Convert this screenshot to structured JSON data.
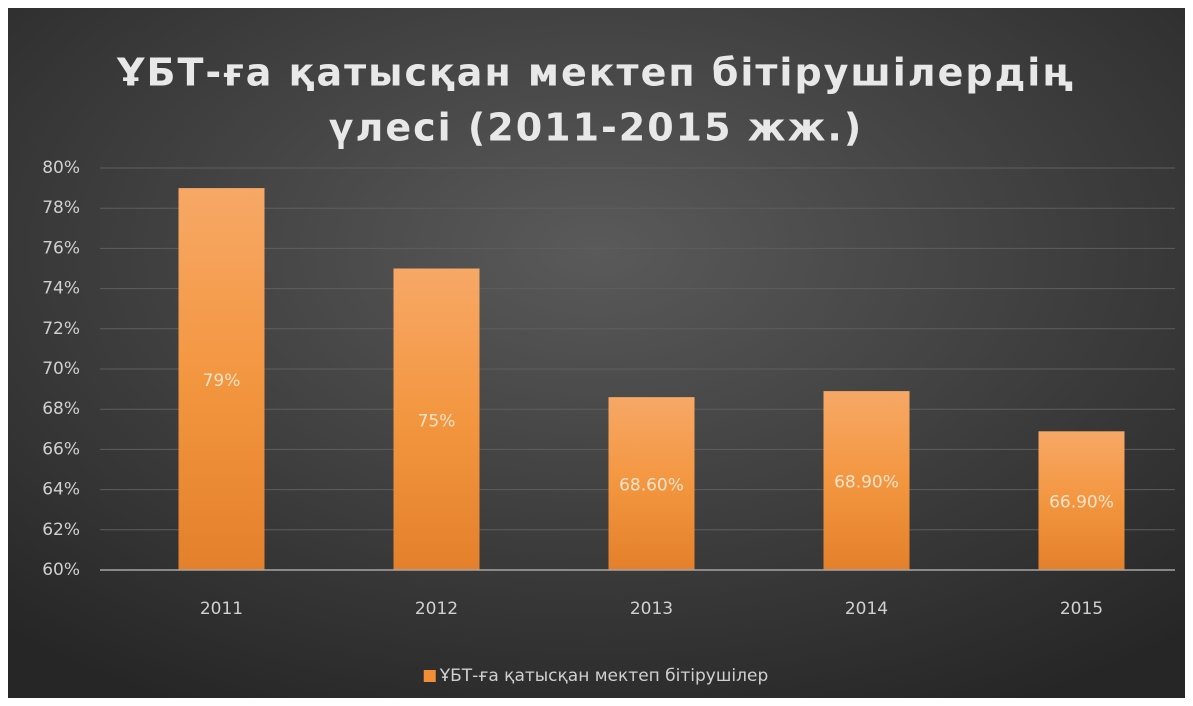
{
  "chart_data": {
    "type": "bar",
    "title": [
      "ҰБТ-ға қатысқан мектеп бітірушілердің",
      "үлесі (2011-2015 жж.)"
    ],
    "categories": [
      "2011",
      "2012",
      "2013",
      "2014",
      "2015"
    ],
    "series": [
      {
        "name": "ҰБТ-ға қатысқан мектеп бітірушілер",
        "color": "#f28e35",
        "values": [
          79,
          75,
          68.6,
          68.9,
          66.9
        ],
        "value_labels": [
          "79%",
          "75%",
          "68.60%",
          "68.90%",
          "66.90%"
        ]
      }
    ],
    "ylim": [
      60,
      80
    ],
    "yticks": [
      {
        "value": 60,
        "label": "60%"
      },
      {
        "value": 62,
        "label": "62%"
      },
      {
        "value": 64,
        "label": "64%"
      },
      {
        "value": 66,
        "label": "66%"
      },
      {
        "value": 68,
        "label": "68%"
      },
      {
        "value": 70,
        "label": "70%"
      },
      {
        "value": 72,
        "label": "72%"
      },
      {
        "value": 74,
        "label": "74%"
      },
      {
        "value": 76,
        "label": "76%"
      },
      {
        "value": 78,
        "label": "78%"
      },
      {
        "value": 80,
        "label": "80%"
      }
    ],
    "grid": true,
    "legend": "bottom"
  }
}
